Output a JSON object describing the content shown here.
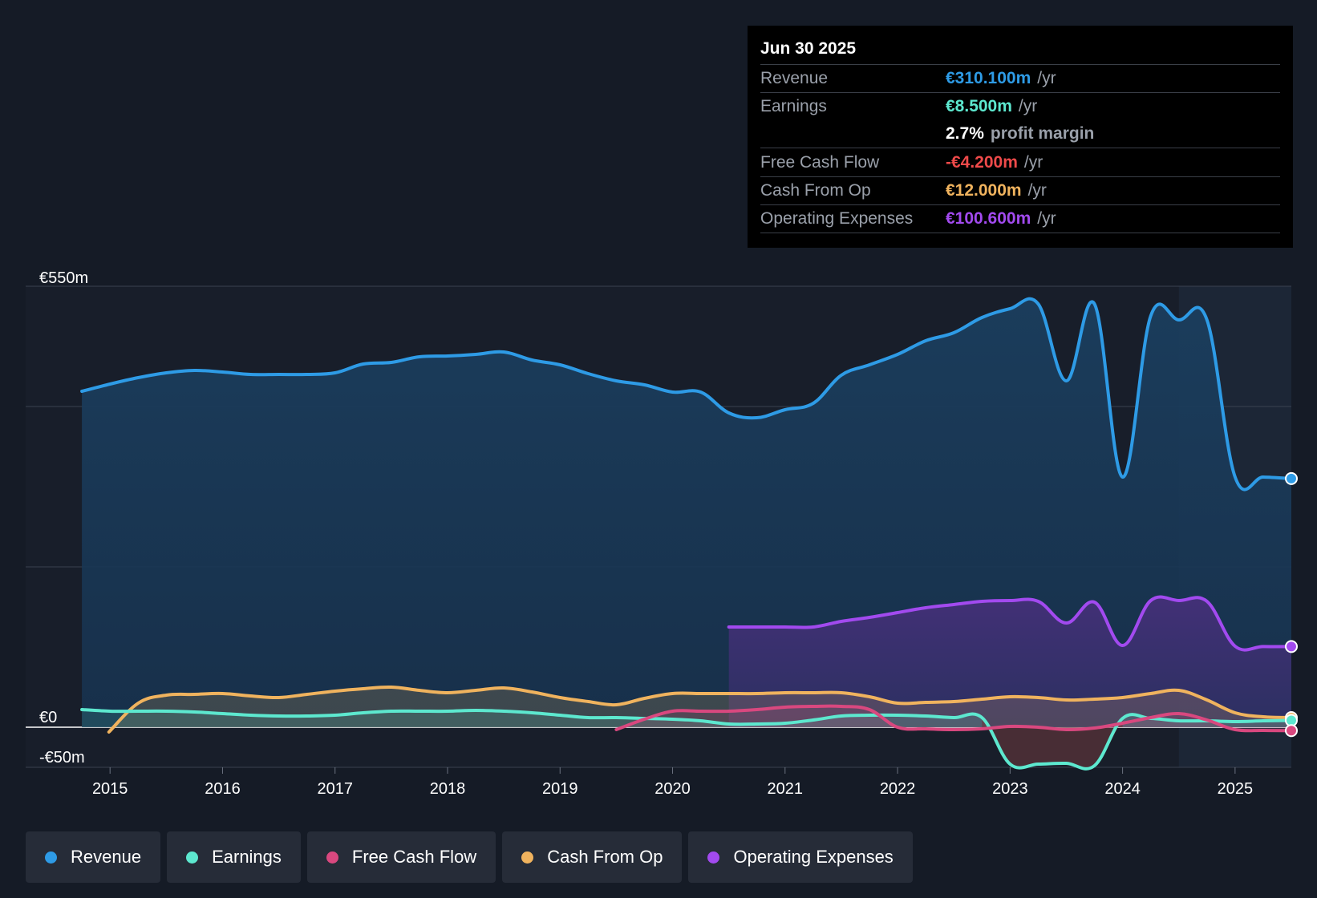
{
  "tooltip": {
    "date": "Jun 30 2025",
    "rows": [
      {
        "label": "Revenue",
        "value": "€310.100m",
        "unit": "/yr",
        "color": "#2e9be6"
      },
      {
        "label": "Earnings",
        "value": "€8.500m",
        "unit": "/yr",
        "color": "#5de8cf"
      },
      {
        "label": "",
        "value": "2.7%",
        "unit": "profit margin",
        "color": "#ffffff"
      },
      {
        "label": "Free Cash Flow",
        "value": "-€4.200m",
        "unit": "/yr",
        "color": "#ef4a4a"
      },
      {
        "label": "Cash From Op",
        "value": "€12.000m",
        "unit": "/yr",
        "color": "#f0b35e"
      },
      {
        "label": "Operating Expenses",
        "value": "€100.600m",
        "unit": "/yr",
        "color": "#a24aef"
      }
    ]
  },
  "legend": [
    {
      "label": "Revenue",
      "color": "#2e9be6"
    },
    {
      "label": "Earnings",
      "color": "#5de8cf"
    },
    {
      "label": "Free Cash Flow",
      "color": "#d9487f"
    },
    {
      "label": "Cash From Op",
      "color": "#f0b35e"
    },
    {
      "label": "Operating Expenses",
      "color": "#a24aef"
    }
  ],
  "chart_data": {
    "type": "area",
    "title": "",
    "xlabel": "",
    "ylabel": "",
    "ylim": [
      -50,
      550
    ],
    "y_tick_labels": [
      {
        "value": 550,
        "label": "€550m"
      },
      {
        "value": 0,
        "label": "€0"
      },
      {
        "value": -50,
        "label": "-€50m"
      }
    ],
    "y_gridlines": [
      550,
      400,
      200,
      0,
      -50
    ],
    "x_range": [
      2014.25,
      2025.5
    ],
    "x_ticks": [
      2015,
      2016,
      2017,
      2018,
      2019,
      2020,
      2021,
      2022,
      2023,
      2024,
      2025
    ],
    "highlight_start": 2024.5,
    "series": [
      {
        "name": "Revenue",
        "color": "#2e9be6",
        "points": [
          [
            2014.75,
            419
          ],
          [
            2015,
            428
          ],
          [
            2015.25,
            436
          ],
          [
            2015.5,
            442
          ],
          [
            2015.75,
            445
          ],
          [
            2016,
            443
          ],
          [
            2016.25,
            440
          ],
          [
            2016.5,
            440
          ],
          [
            2016.75,
            440
          ],
          [
            2017,
            442
          ],
          [
            2017.25,
            453
          ],
          [
            2017.5,
            455
          ],
          [
            2017.75,
            462
          ],
          [
            2018,
            463
          ],
          [
            2018.25,
            465
          ],
          [
            2018.5,
            468
          ],
          [
            2018.75,
            458
          ],
          [
            2019,
            452
          ],
          [
            2019.25,
            441
          ],
          [
            2019.5,
            432
          ],
          [
            2019.75,
            427
          ],
          [
            2020,
            418
          ],
          [
            2020.25,
            418
          ],
          [
            2020.5,
            392
          ],
          [
            2020.75,
            386
          ],
          [
            2021,
            396
          ],
          [
            2021.25,
            404
          ],
          [
            2021.5,
            439
          ],
          [
            2021.75,
            452
          ],
          [
            2022,
            465
          ],
          [
            2022.25,
            482
          ],
          [
            2022.5,
            492
          ],
          [
            2022.75,
            511
          ],
          [
            2023,
            522
          ],
          [
            2023.25,
            528
          ],
          [
            2023.5,
            432
          ],
          [
            2023.75,
            528
          ],
          [
            2024,
            312
          ],
          [
            2024.25,
            513
          ],
          [
            2024.5,
            508
          ],
          [
            2024.75,
            508
          ],
          [
            2025,
            312
          ],
          [
            2025.25,
            312
          ],
          [
            2025.5,
            310.1
          ]
        ]
      },
      {
        "name": "Operating Expenses",
        "color": "#a24aef",
        "points": [
          [
            2020.5,
            125
          ],
          [
            2020.75,
            125
          ],
          [
            2021,
            125
          ],
          [
            2021.25,
            125
          ],
          [
            2021.5,
            132
          ],
          [
            2021.75,
            137
          ],
          [
            2022,
            143
          ],
          [
            2022.25,
            149
          ],
          [
            2022.5,
            153
          ],
          [
            2022.75,
            157
          ],
          [
            2023,
            158
          ],
          [
            2023.25,
            157
          ],
          [
            2023.5,
            130
          ],
          [
            2023.75,
            156
          ],
          [
            2024,
            102
          ],
          [
            2024.25,
            158
          ],
          [
            2024.5,
            158
          ],
          [
            2024.75,
            157
          ],
          [
            2025,
            101
          ],
          [
            2025.25,
            100.6
          ],
          [
            2025.5,
            100.6
          ]
        ]
      },
      {
        "name": "Cash From Op",
        "color": "#f0b35e",
        "points": [
          [
            2014.99,
            -6
          ],
          [
            2015.25,
            30
          ],
          [
            2015.5,
            40
          ],
          [
            2015.75,
            41
          ],
          [
            2016,
            42
          ],
          [
            2016.25,
            39
          ],
          [
            2016.5,
            37
          ],
          [
            2016.75,
            41
          ],
          [
            2017,
            45
          ],
          [
            2017.25,
            48
          ],
          [
            2017.5,
            50
          ],
          [
            2017.75,
            46
          ],
          [
            2018,
            43
          ],
          [
            2018.25,
            46
          ],
          [
            2018.5,
            49
          ],
          [
            2018.75,
            44
          ],
          [
            2019,
            37
          ],
          [
            2019.25,
            32
          ],
          [
            2019.5,
            28
          ],
          [
            2019.75,
            36
          ],
          [
            2020,
            42
          ],
          [
            2020.25,
            42
          ],
          [
            2020.5,
            42
          ],
          [
            2020.75,
            42
          ],
          [
            2021,
            43
          ],
          [
            2021.25,
            43
          ],
          [
            2021.5,
            43
          ],
          [
            2021.75,
            38
          ],
          [
            2022,
            30
          ],
          [
            2022.25,
            31
          ],
          [
            2022.5,
            32
          ],
          [
            2022.75,
            35
          ],
          [
            2023,
            38
          ],
          [
            2023.25,
            37
          ],
          [
            2023.5,
            34
          ],
          [
            2023.75,
            35
          ],
          [
            2024,
            37
          ],
          [
            2024.25,
            42
          ],
          [
            2024.5,
            46
          ],
          [
            2024.75,
            34
          ],
          [
            2025,
            18
          ],
          [
            2025.25,
            13
          ],
          [
            2025.5,
            12
          ]
        ]
      },
      {
        "name": "Earnings",
        "color": "#5de8cf",
        "points": [
          [
            2014.75,
            22
          ],
          [
            2015,
            20
          ],
          [
            2015.25,
            20
          ],
          [
            2015.5,
            20
          ],
          [
            2015.75,
            19
          ],
          [
            2016,
            17
          ],
          [
            2016.25,
            15
          ],
          [
            2016.5,
            14
          ],
          [
            2016.75,
            14
          ],
          [
            2017,
            15
          ],
          [
            2017.25,
            18
          ],
          [
            2017.5,
            20
          ],
          [
            2017.75,
            20
          ],
          [
            2018,
            20
          ],
          [
            2018.25,
            21
          ],
          [
            2018.5,
            20
          ],
          [
            2018.75,
            18
          ],
          [
            2019,
            15
          ],
          [
            2019.25,
            12
          ],
          [
            2019.5,
            12
          ],
          [
            2019.75,
            11
          ],
          [
            2020,
            10
          ],
          [
            2020.25,
            8
          ],
          [
            2020.5,
            4
          ],
          [
            2020.75,
            4
          ],
          [
            2021,
            5
          ],
          [
            2021.25,
            9
          ],
          [
            2021.5,
            14
          ],
          [
            2021.75,
            15
          ],
          [
            2022,
            15
          ],
          [
            2022.25,
            14
          ],
          [
            2022.5,
            12
          ],
          [
            2022.75,
            12
          ],
          [
            2023,
            -46
          ],
          [
            2023.25,
            -46
          ],
          [
            2023.5,
            -45
          ],
          [
            2023.75,
            -48
          ],
          [
            2024,
            11
          ],
          [
            2024.25,
            11
          ],
          [
            2024.5,
            8
          ],
          [
            2024.75,
            8
          ],
          [
            2025,
            7
          ],
          [
            2025.25,
            8
          ],
          [
            2025.5,
            8.5
          ]
        ]
      },
      {
        "name": "Free Cash Flow",
        "color": "#d9487f",
        "points": [
          [
            2019.5,
            -3
          ],
          [
            2019.75,
            10
          ],
          [
            2020,
            20
          ],
          [
            2020.25,
            20
          ],
          [
            2020.5,
            20
          ],
          [
            2020.75,
            22
          ],
          [
            2021,
            25
          ],
          [
            2021.25,
            26
          ],
          [
            2021.5,
            26
          ],
          [
            2021.75,
            22
          ],
          [
            2022,
            0
          ],
          [
            2022.25,
            -2
          ],
          [
            2022.5,
            -3
          ],
          [
            2022.75,
            -2
          ],
          [
            2023,
            1
          ],
          [
            2023.25,
            0
          ],
          [
            2023.5,
            -3
          ],
          [
            2023.75,
            -1
          ],
          [
            2024,
            5
          ],
          [
            2024.25,
            12
          ],
          [
            2024.5,
            17
          ],
          [
            2024.75,
            9
          ],
          [
            2025,
            -3
          ],
          [
            2025.25,
            -4
          ],
          [
            2025.5,
            -4.2
          ]
        ]
      }
    ]
  }
}
